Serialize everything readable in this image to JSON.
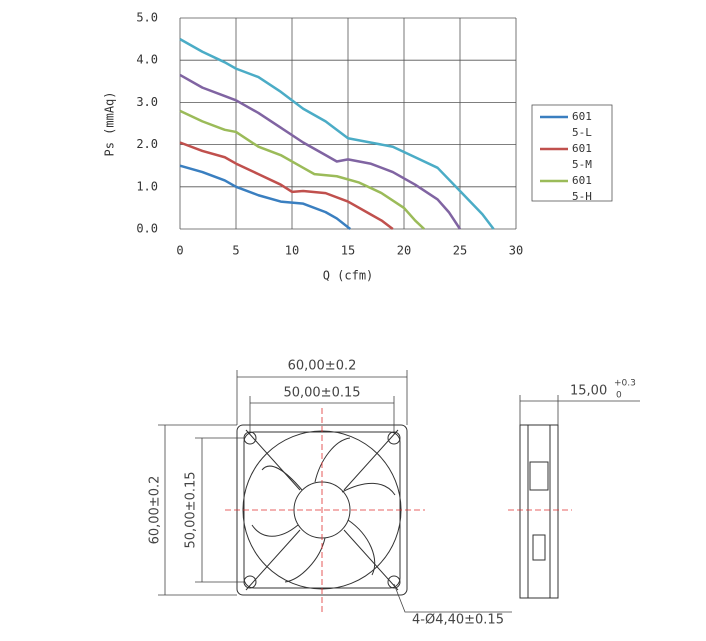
{
  "chart_data": {
    "type": "line",
    "xlabel": "Q (cfm)",
    "ylabel": "Ps (mmAq)",
    "xlim": [
      0,
      30
    ],
    "xticks": [
      0,
      5,
      10,
      15,
      20,
      25,
      30
    ],
    "ylim": [
      0,
      5
    ],
    "yticks": [
      {
        "value": 0,
        "label": "0.0"
      },
      {
        "value": 1,
        "label": "1.0"
      },
      {
        "value": 2,
        "label": "2.0"
      },
      {
        "value": 3,
        "label": "3.0"
      },
      {
        "value": 4,
        "label": "4.0"
      },
      {
        "value": 5,
        "label": "5.0"
      }
    ],
    "grid": true,
    "legend": "right",
    "series": [
      {
        "name": "6015-L",
        "color": "#3a7fc0",
        "x": [
          0,
          2,
          4,
          5,
          7,
          9,
          11,
          13,
          14,
          15.2
        ],
        "values": [
          1.5,
          1.35,
          1.15,
          1.0,
          0.8,
          0.65,
          0.6,
          0.4,
          0.25,
          0
        ]
      },
      {
        "name": "6015-M",
        "color": "#c0504d",
        "x": [
          0,
          2,
          4,
          5,
          7,
          9,
          10,
          11,
          13,
          15,
          17,
          18,
          19
        ],
        "values": [
          2.05,
          1.85,
          1.7,
          1.55,
          1.3,
          1.05,
          0.88,
          0.9,
          0.85,
          0.65,
          0.35,
          0.2,
          0
        ]
      },
      {
        "name": "6015-H",
        "color": "#9bbb59",
        "x": [
          0,
          2,
          4,
          5,
          7,
          9,
          11,
          12,
          14,
          16,
          18,
          20,
          21,
          21.8
        ],
        "values": [
          2.8,
          2.55,
          2.35,
          2.3,
          1.95,
          1.75,
          1.45,
          1.3,
          1.25,
          1.1,
          0.85,
          0.5,
          0.2,
          0
        ]
      },
      {
        "color": "#8064a2",
        "x": [
          0,
          2,
          4,
          5,
          7,
          9,
          11,
          13,
          14,
          15,
          17,
          19,
          21,
          23,
          24,
          25
        ],
        "values": [
          3.65,
          3.35,
          3.15,
          3.05,
          2.75,
          2.4,
          2.05,
          1.75,
          1.6,
          1.65,
          1.55,
          1.35,
          1.05,
          0.7,
          0.4,
          0
        ]
      },
      {
        "color": "#4bacc6",
        "x": [
          0,
          2,
          4,
          5,
          7,
          9,
          11,
          13,
          15,
          17,
          19,
          21,
          23,
          25,
          27,
          28
        ],
        "values": [
          4.5,
          4.2,
          3.95,
          3.8,
          3.6,
          3.25,
          2.85,
          2.55,
          2.15,
          2.05,
          1.95,
          1.7,
          1.45,
          0.9,
          0.35,
          0
        ]
      }
    ]
  },
  "drawing": {
    "width_outer": "60,00±0.2",
    "width_holes": "50,00±0.15",
    "height_outer": "60,00±0.2",
    "height_holes": "50,00±0.15",
    "depth": "15,00",
    "depth_tol_upper": "+0.3",
    "depth_tol_lower": "0",
    "holes": "4-Ø4,40±0.15"
  }
}
